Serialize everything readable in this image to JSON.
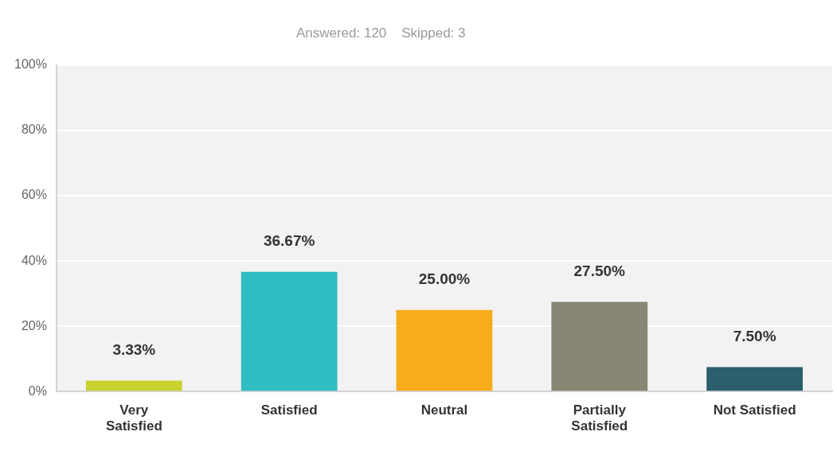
{
  "chart_data": {
    "type": "bar",
    "title": "Answered: 120    Skipped: 3",
    "categories": [
      "Very Satisfied",
      "Satisfied",
      "Neutral",
      "Partially Satisfied",
      "Not Satisfied"
    ],
    "values": [
      3.33,
      36.67,
      25.0,
      27.5,
      7.5
    ],
    "colors": [
      "#c9d22f",
      "#2fbdc1",
      "#f8ab1b",
      "#878774",
      "#2b5f6d"
    ],
    "value_labels": [
      "3.33%",
      "36.67%",
      "25.00%",
      "27.50%",
      "7.50%"
    ],
    "ylim": [
      0,
      100
    ],
    "yticks": [
      {
        "value": 0,
        "label": "0%"
      },
      {
        "value": 20,
        "label": "20%"
      },
      {
        "value": 40,
        "label": "40%"
      },
      {
        "value": 60,
        "label": "60%"
      },
      {
        "value": 80,
        "label": "80%"
      },
      {
        "value": 100,
        "label": "100%"
      }
    ],
    "grid": "y"
  }
}
